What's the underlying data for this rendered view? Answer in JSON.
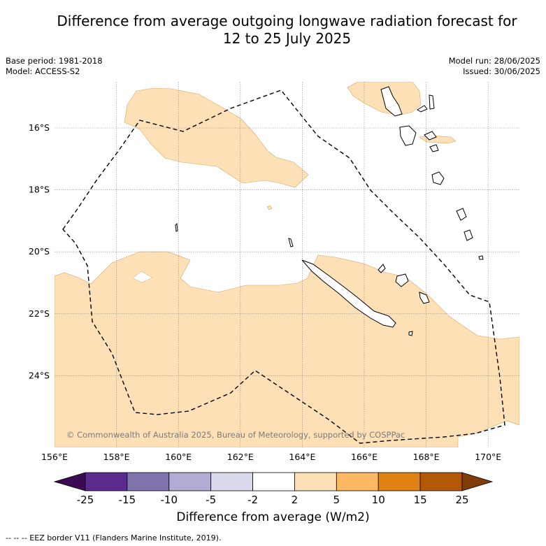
{
  "title_line1": "Difference from average outgoing longwave radiation forecast for",
  "title_line2": "12 to 25 July 2025",
  "base_period": "Base period: 1981-2018",
  "model": "Model: ACCESS-S2",
  "model_run": "Model run: 28/06/2025",
  "issued": "Issued: 30/06/2025",
  "copyright": "© Commonwealth of Australia 2025, Bureau of Meteorology, supported by COSPPac",
  "lon_labels": [
    "156°E",
    "158°E",
    "160°E",
    "162°E",
    "164°E",
    "166°E",
    "168°E",
    "170°E"
  ],
  "lat_labels": [
    "16°S",
    "18°S",
    "20°S",
    "22°S",
    "24°S"
  ],
  "colorbar": {
    "ticks": [
      "-25",
      "-15",
      "-10",
      "-5",
      "-2",
      "2",
      "5",
      "10",
      "15",
      "25"
    ],
    "colors": [
      "#3b0a52",
      "#5a2a8c",
      "#8073ac",
      "#b2abd2",
      "#d8daeb",
      "#ffffff",
      "#fee0b6",
      "#fdb863",
      "#e08214",
      "#b35806",
      "#7f3b08"
    ],
    "title": "Difference from average (W/m2)"
  },
  "fill_color": "#fee0b6",
  "footer": "--  --  -- EEZ border V11 (Flanders Marine Institute, 2019)."
}
